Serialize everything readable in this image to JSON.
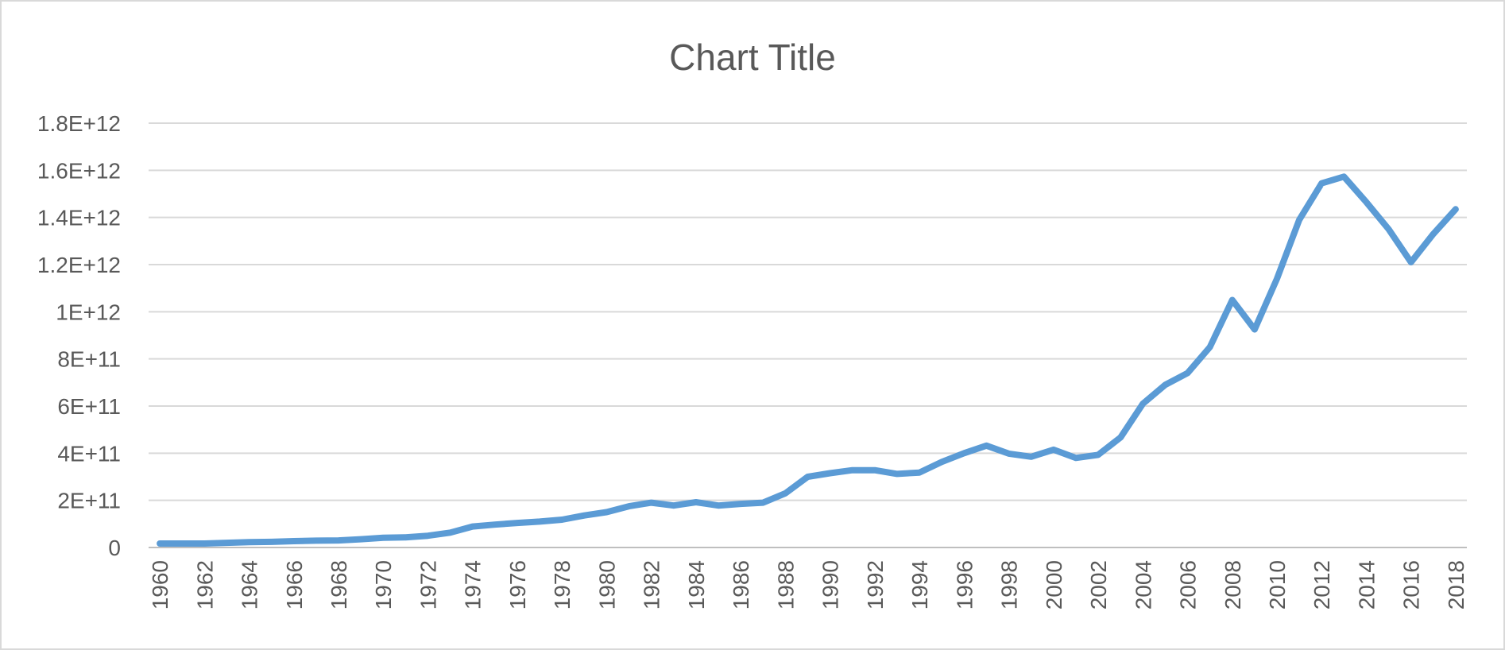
{
  "chart_data": {
    "type": "line",
    "title": "Chart Title",
    "xlabel": "",
    "ylabel": "",
    "ylim": [
      0,
      1800000000000
    ],
    "y_ticks": [
      {
        "value": 0,
        "label": "0"
      },
      {
        "value": 200000000000,
        "label": "2E+11"
      },
      {
        "value": 400000000000,
        "label": "4E+11"
      },
      {
        "value": 600000000000,
        "label": "6E+11"
      },
      {
        "value": 800000000000,
        "label": "8E+11"
      },
      {
        "value": 1000000000000,
        "label": "1E+12"
      },
      {
        "value": 1200000000000,
        "label": "1.2E+12"
      },
      {
        "value": 1400000000000,
        "label": "1.4E+12"
      },
      {
        "value": 1600000000000,
        "label": "1.6E+12"
      },
      {
        "value": 1800000000000,
        "label": "1.8E+12"
      }
    ],
    "x_tick_labels": [
      "1960",
      "1962",
      "1964",
      "1966",
      "1968",
      "1970",
      "1972",
      "1974",
      "1976",
      "1978",
      "1980",
      "1982",
      "1984",
      "1986",
      "1988",
      "1990",
      "1992",
      "1994",
      "1996",
      "1998",
      "2000",
      "2002",
      "2004",
      "2006",
      "2008",
      "2010",
      "2012",
      "2014",
      "2016",
      "2018"
    ],
    "grid": true,
    "legend": "none",
    "color": "#5b9bd5",
    "x": [
      1960,
      1961,
      1962,
      1963,
      1964,
      1965,
      1966,
      1967,
      1968,
      1969,
      1970,
      1971,
      1972,
      1973,
      1974,
      1975,
      1976,
      1977,
      1978,
      1979,
      1980,
      1981,
      1982,
      1983,
      1984,
      1985,
      1986,
      1987,
      1988,
      1989,
      1990,
      1991,
      1992,
      1993,
      1994,
      1995,
      1996,
      1997,
      1998,
      1999,
      2000,
      2001,
      2002,
      2003,
      2004,
      2005,
      2006,
      2007,
      2008,
      2009,
      2010,
      2011,
      2012,
      2013,
      2014,
      2015,
      2016,
      2017,
      2018
    ],
    "series": [
      {
        "values": [
          17000000000,
          17000000000,
          17000000000,
          20000000000,
          23000000000,
          24000000000,
          27000000000,
          29000000000,
          30000000000,
          35000000000,
          41000000000,
          43000000000,
          50000000000,
          63000000000,
          89000000000,
          97000000000,
          104000000000,
          110000000000,
          118000000000,
          136000000000,
          150000000000,
          175000000000,
          190000000000,
          178000000000,
          192000000000,
          178000000000,
          185000000000,
          190000000000,
          230000000000,
          300000000000,
          315000000000,
          328000000000,
          328000000000,
          312000000000,
          318000000000,
          363000000000,
          400000000000,
          432000000000,
          398000000000,
          385000000000,
          415000000000,
          380000000000,
          393000000000,
          467000000000,
          610000000000,
          690000000000,
          740000000000,
          850000000000,
          1050000000000,
          925000000000,
          1140000000000,
          1390000000000,
          1545000000000,
          1573000000000,
          1465000000000,
          1350000000000,
          1210000000000,
          1330000000000,
          1435000000000
        ]
      }
    ]
  }
}
